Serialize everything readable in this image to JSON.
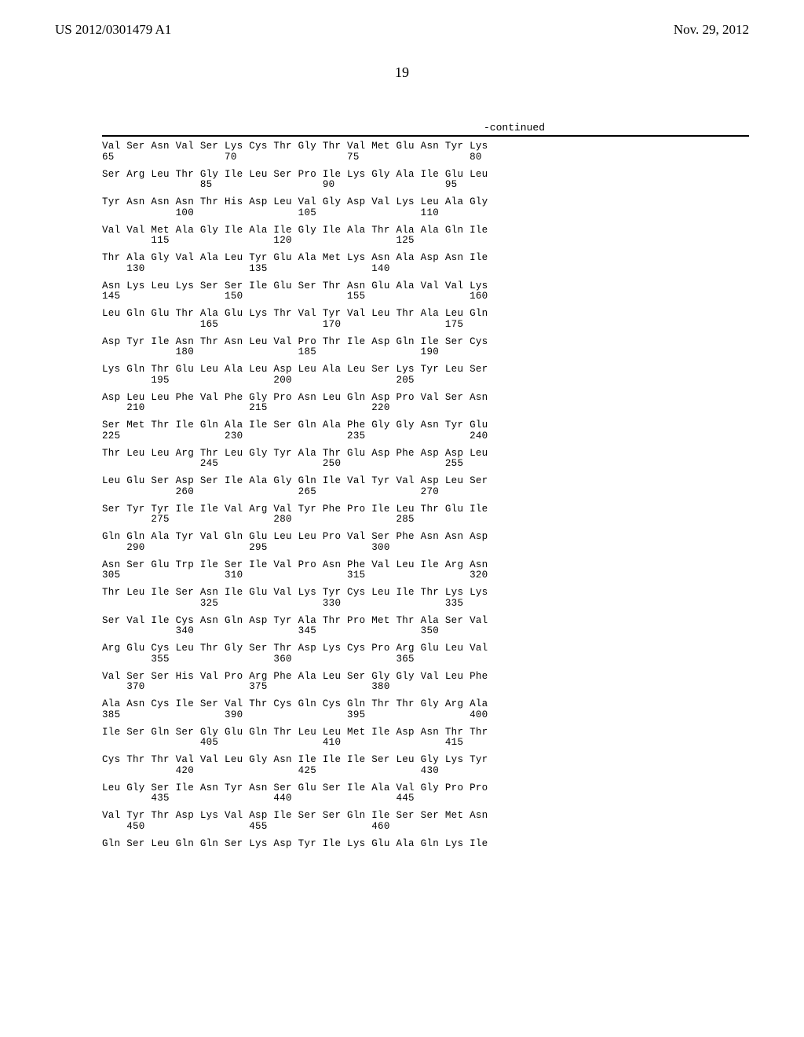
{
  "header": {
    "left": "US 2012/0301479 A1",
    "right": "Nov. 29, 2012"
  },
  "page_number": "19",
  "continued_label": "-continued",
  "sequence_rows": [
    {
      "res": "Val Ser Asn Val Ser Lys Cys Thr Gly Thr Val Met Glu Asn Tyr Lys",
      "nums": [
        [
          "65",
          0
        ],
        [
          "70",
          5
        ],
        [
          "75",
          10
        ],
        [
          "80",
          15
        ]
      ]
    },
    {
      "res": "Ser Arg Leu Thr Gly Ile Leu Ser Pro Ile Lys Gly Ala Ile Glu Leu",
      "nums": [
        [
          "85",
          4
        ],
        [
          "90",
          9
        ],
        [
          "95",
          14
        ]
      ]
    },
    {
      "res": "Tyr Asn Asn Asn Thr His Asp Leu Val Gly Asp Val Lys Leu Ala Gly",
      "nums": [
        [
          "100",
          3
        ],
        [
          "105",
          8
        ],
        [
          "110",
          13
        ]
      ]
    },
    {
      "res": "Val Val Met Ala Gly Ile Ala Ile Gly Ile Ala Thr Ala Ala Gln Ile",
      "nums": [
        [
          "115",
          2
        ],
        [
          "120",
          7
        ],
        [
          "125",
          12
        ]
      ]
    },
    {
      "res": "Thr Ala Gly Val Ala Leu Tyr Glu Ala Met Lys Asn Ala Asp Asn Ile",
      "nums": [
        [
          "130",
          1
        ],
        [
          "135",
          6
        ],
        [
          "140",
          11
        ]
      ]
    },
    {
      "res": "Asn Lys Leu Lys Ser Ser Ile Glu Ser Thr Asn Glu Ala Val Val Lys",
      "nums": [
        [
          "145",
          0
        ],
        [
          "150",
          5
        ],
        [
          "155",
          10
        ],
        [
          "160",
          15
        ]
      ]
    },
    {
      "res": "Leu Gln Glu Thr Ala Glu Lys Thr Val Tyr Val Leu Thr Ala Leu Gln",
      "nums": [
        [
          "165",
          4
        ],
        [
          "170",
          9
        ],
        [
          "175",
          14
        ]
      ]
    },
    {
      "res": "Asp Tyr Ile Asn Thr Asn Leu Val Pro Thr Ile Asp Gln Ile Ser Cys",
      "nums": [
        [
          "180",
          3
        ],
        [
          "185",
          8
        ],
        [
          "190",
          13
        ]
      ]
    },
    {
      "res": "Lys Gln Thr Glu Leu Ala Leu Asp Leu Ala Leu Ser Lys Tyr Leu Ser",
      "nums": [
        [
          "195",
          2
        ],
        [
          "200",
          7
        ],
        [
          "205",
          12
        ]
      ]
    },
    {
      "res": "Asp Leu Leu Phe Val Phe Gly Pro Asn Leu Gln Asp Pro Val Ser Asn",
      "nums": [
        [
          "210",
          1
        ],
        [
          "215",
          6
        ],
        [
          "220",
          11
        ]
      ]
    },
    {
      "res": "Ser Met Thr Ile Gln Ala Ile Ser Gln Ala Phe Gly Gly Asn Tyr Glu",
      "nums": [
        [
          "225",
          0
        ],
        [
          "230",
          5
        ],
        [
          "235",
          10
        ],
        [
          "240",
          15
        ]
      ]
    },
    {
      "res": "Thr Leu Leu Arg Thr Leu Gly Tyr Ala Thr Glu Asp Phe Asp Asp Leu",
      "nums": [
        [
          "245",
          4
        ],
        [
          "250",
          9
        ],
        [
          "255",
          14
        ]
      ]
    },
    {
      "res": "Leu Glu Ser Asp Ser Ile Ala Gly Gln Ile Val Tyr Val Asp Leu Ser",
      "nums": [
        [
          "260",
          3
        ],
        [
          "265",
          8
        ],
        [
          "270",
          13
        ]
      ]
    },
    {
      "res": "Ser Tyr Tyr Ile Ile Val Arg Val Tyr Phe Pro Ile Leu Thr Glu Ile",
      "nums": [
        [
          "275",
          2
        ],
        [
          "280",
          7
        ],
        [
          "285",
          12
        ]
      ]
    },
    {
      "res": "Gln Gln Ala Tyr Val Gln Glu Leu Leu Pro Val Ser Phe Asn Asn Asp",
      "nums": [
        [
          "290",
          1
        ],
        [
          "295",
          6
        ],
        [
          "300",
          11
        ]
      ]
    },
    {
      "res": "Asn Ser Glu Trp Ile Ser Ile Val Pro Asn Phe Val Leu Ile Arg Asn",
      "nums": [
        [
          "305",
          0
        ],
        [
          "310",
          5
        ],
        [
          "315",
          10
        ],
        [
          "320",
          15
        ]
      ]
    },
    {
      "res": "Thr Leu Ile Ser Asn Ile Glu Val Lys Tyr Cys Leu Ile Thr Lys Lys",
      "nums": [
        [
          "325",
          4
        ],
        [
          "330",
          9
        ],
        [
          "335",
          14
        ]
      ]
    },
    {
      "res": "Ser Val Ile Cys Asn Gln Asp Tyr Ala Thr Pro Met Thr Ala Ser Val",
      "nums": [
        [
          "340",
          3
        ],
        [
          "345",
          8
        ],
        [
          "350",
          13
        ]
      ]
    },
    {
      "res": "Arg Glu Cys Leu Thr Gly Ser Thr Asp Lys Cys Pro Arg Glu Leu Val",
      "nums": [
        [
          "355",
          2
        ],
        [
          "360",
          7
        ],
        [
          "365",
          12
        ]
      ]
    },
    {
      "res": "Val Ser Ser His Val Pro Arg Phe Ala Leu Ser Gly Gly Val Leu Phe",
      "nums": [
        [
          "370",
          1
        ],
        [
          "375",
          6
        ],
        [
          "380",
          11
        ]
      ]
    },
    {
      "res": "Ala Asn Cys Ile Ser Val Thr Cys Gln Cys Gln Thr Thr Gly Arg Ala",
      "nums": [
        [
          "385",
          0
        ],
        [
          "390",
          5
        ],
        [
          "395",
          10
        ],
        [
          "400",
          15
        ]
      ]
    },
    {
      "res": "Ile Ser Gln Ser Gly Glu Gln Thr Leu Leu Met Ile Asp Asn Thr Thr",
      "nums": [
        [
          "405",
          4
        ],
        [
          "410",
          9
        ],
        [
          "415",
          14
        ]
      ]
    },
    {
      "res": "Cys Thr Thr Val Val Leu Gly Asn Ile Ile Ile Ser Leu Gly Lys Tyr",
      "nums": [
        [
          "420",
          3
        ],
        [
          "425",
          8
        ],
        [
          "430",
          13
        ]
      ]
    },
    {
      "res": "Leu Gly Ser Ile Asn Tyr Asn Ser Glu Ser Ile Ala Val Gly Pro Pro",
      "nums": [
        [
          "435",
          2
        ],
        [
          "440",
          7
        ],
        [
          "445",
          12
        ]
      ]
    },
    {
      "res": "Val Tyr Thr Asp Lys Val Asp Ile Ser Ser Gln Ile Ser Ser Met Asn",
      "nums": [
        [
          "450",
          1
        ],
        [
          "455",
          6
        ],
        [
          "460",
          11
        ]
      ]
    },
    {
      "res": "Gln Ser Leu Gln Gln Ser Lys Asp Tyr Ile Lys Glu Ala Gln Lys Ile",
      "nums": []
    }
  ]
}
